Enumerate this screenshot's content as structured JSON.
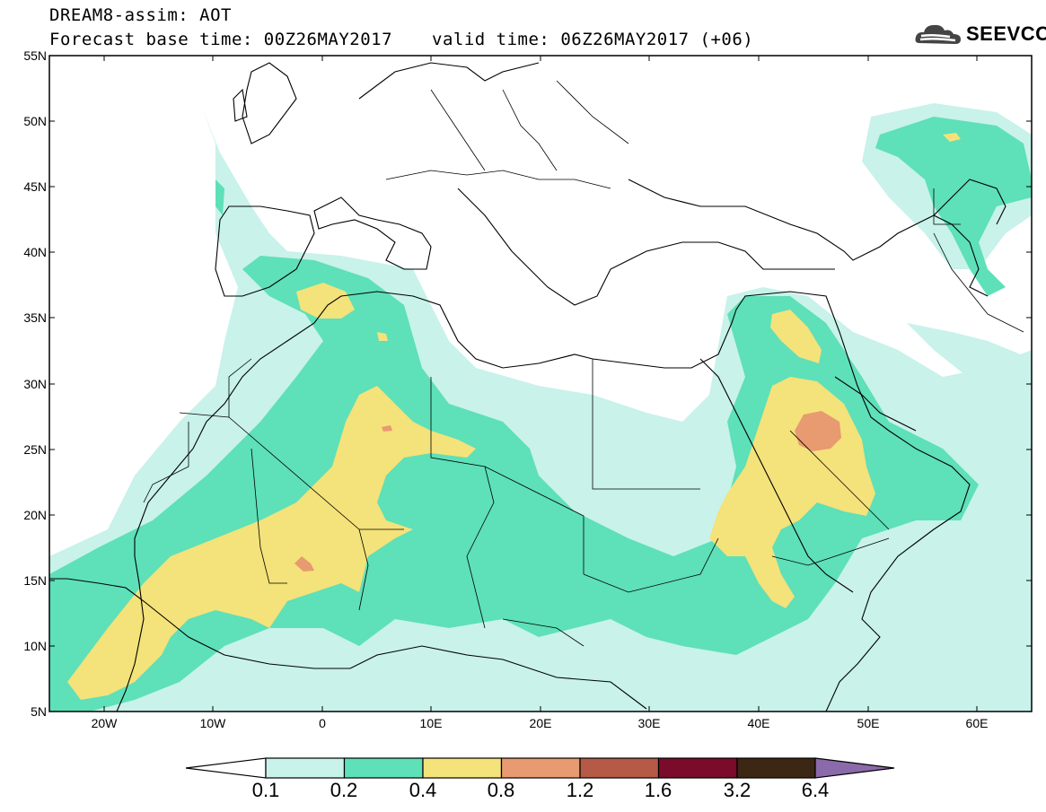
{
  "header": {
    "title": "DREAM8-assim: AOT",
    "base_time": "Forecast base time: 00Z26MAY2017",
    "valid_time": "valid time: 06Z26MAY2017 (+06)"
  },
  "brand": {
    "name": "SEEVCCC",
    "icon": "cloud-logo-icon"
  },
  "map": {
    "lat_labels": [
      "55N",
      "50N",
      "45N",
      "40N",
      "35N",
      "30N",
      "25N",
      "20N",
      "15N",
      "10N",
      "5N"
    ],
    "lon_labels": [
      "20W",
      "10W",
      "0",
      "10E",
      "20E",
      "30E",
      "40E",
      "50E",
      "60E"
    ],
    "extent": {
      "lon_min": -25,
      "lon_max": 65,
      "lat_min": 5,
      "lat_max": 55
    }
  },
  "colorbar": {
    "labels": [
      "0.1",
      "0.2",
      "0.4",
      "0.8",
      "1.2",
      "1.6",
      "3.2",
      "6.4"
    ],
    "colors": [
      "#ffffff",
      "#c8f2ea",
      "#5ee0b8",
      "#f4e27a",
      "#e89a70",
      "#b45a46",
      "#7a0b2a",
      "#3c2614",
      "#8a6aaa"
    ]
  },
  "colors": {
    "aot_01": "#c8f2ea",
    "aot_02": "#5ee0b8",
    "aot_04": "#f4e27a",
    "aot_08": "#e89a70"
  }
}
